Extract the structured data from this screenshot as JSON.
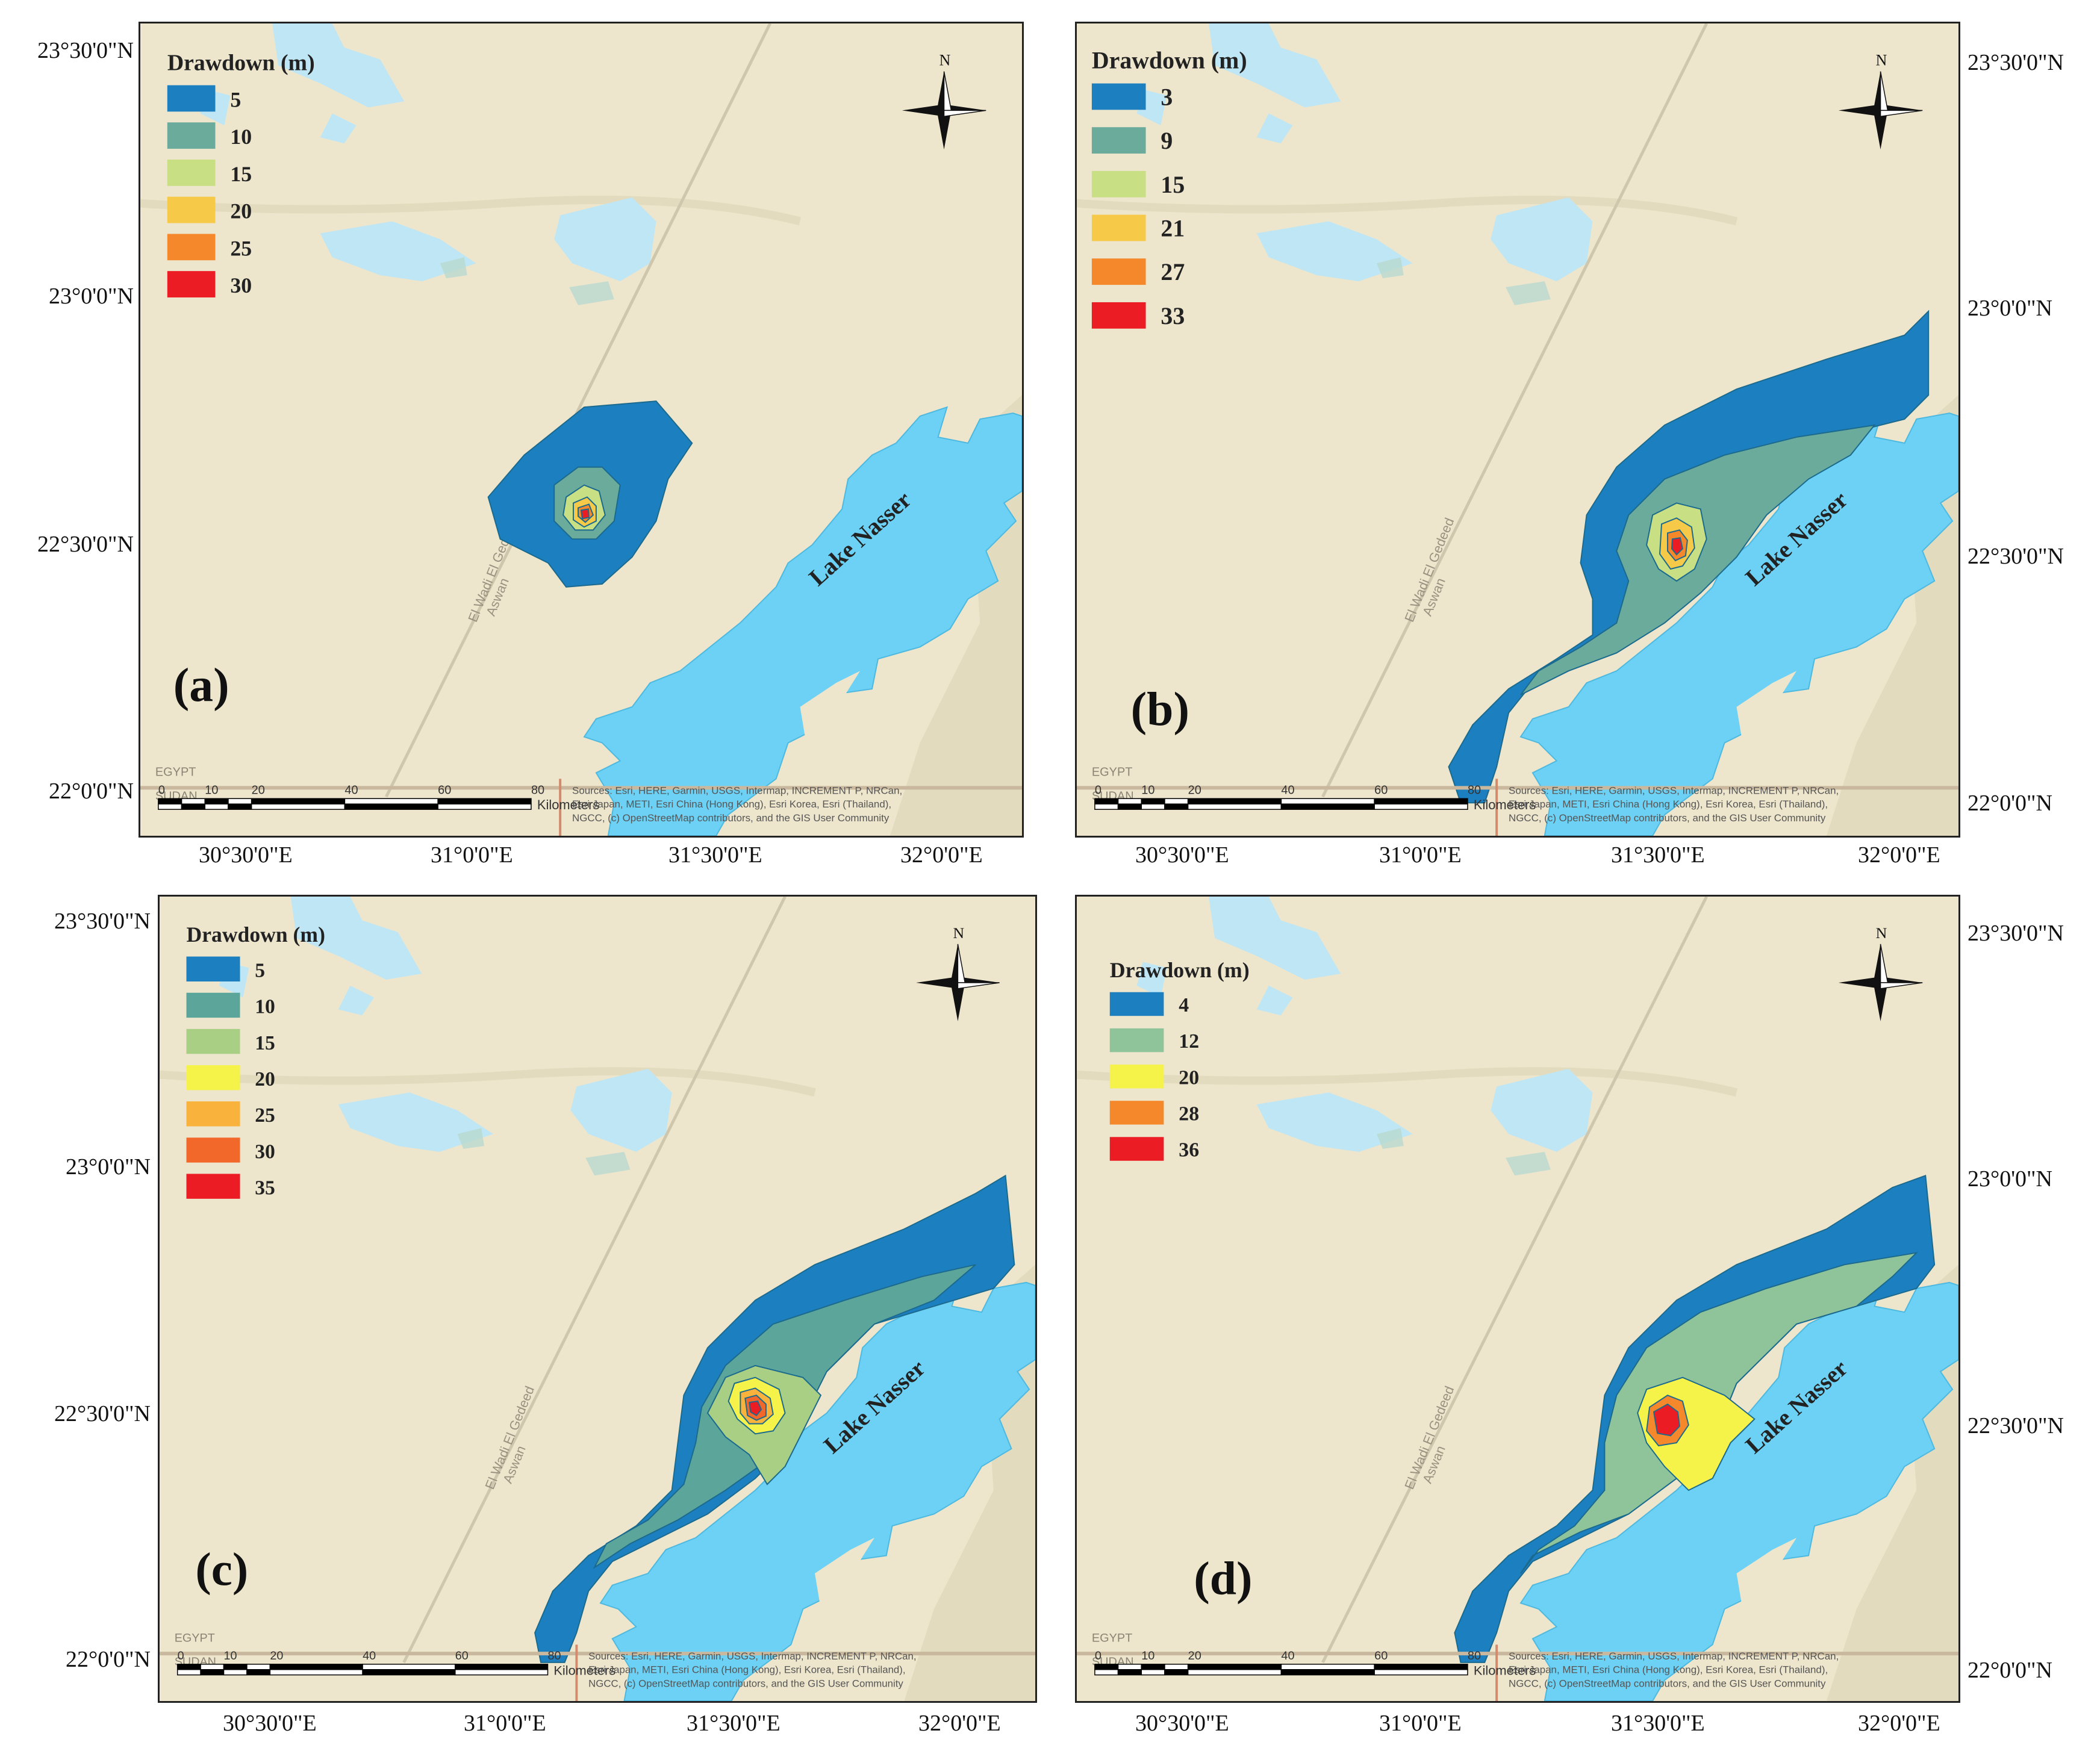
{
  "panels": [
    {
      "id": "a",
      "tag": "(a)",
      "legend_title": "Drawdown (m)",
      "legend": [
        {
          "label": "5",
          "color": "#1c7fc0"
        },
        {
          "label": "10",
          "color": "#6aab9c"
        },
        {
          "label": "15",
          "color": "#c9df84"
        },
        {
          "label": "20",
          "color": "#f7c948"
        },
        {
          "label": "25",
          "color": "#f5882a"
        },
        {
          "label": "30",
          "color": "#ec1c24"
        }
      ],
      "lat_left": [
        "23°30'0\"N",
        "23°0'0\"N",
        "22°30'0\"N",
        "22°0'0\"N"
      ],
      "lat_right": [],
      "lon_bottom": [
        "30°30'0\"E",
        "31°0'0\"E",
        "31°30'0\"E",
        "32°0'0\"E"
      ]
    },
    {
      "id": "b",
      "tag": "(b)",
      "legend_title": "Drawdown (m)",
      "legend": [
        {
          "label": "3",
          "color": "#1c7fc0"
        },
        {
          "label": "9",
          "color": "#6aab9c"
        },
        {
          "label": "15",
          "color": "#c9df84"
        },
        {
          "label": "21",
          "color": "#f7c948"
        },
        {
          "label": "27",
          "color": "#f5882a"
        },
        {
          "label": "33",
          "color": "#ec1c24"
        }
      ],
      "lat_left": [],
      "lat_right": [
        "23°30'0\"N",
        "23°0'0\"N",
        "22°30'0\"N",
        "22°0'0\"N"
      ],
      "lon_bottom": [
        "30°30'0\"E",
        "31°0'0\"E",
        "31°30'0\"E",
        "32°0'0\"E"
      ]
    },
    {
      "id": "c",
      "tag": "(c)",
      "legend_title": "Drawdown (m)",
      "legend": [
        {
          "label": "5",
          "color": "#1c7fc0"
        },
        {
          "label": "10",
          "color": "#5ba59b"
        },
        {
          "label": "15",
          "color": "#a9cf84"
        },
        {
          "label": "20",
          "color": "#f5f24a"
        },
        {
          "label": "25",
          "color": "#f9b23c"
        },
        {
          "label": "30",
          "color": "#f2672a"
        },
        {
          "label": "35",
          "color": "#ec1c24"
        }
      ],
      "lat_left": [
        "23°30'0\"N",
        "23°0'0\"N",
        "22°30'0\"N",
        "22°0'0\"N"
      ],
      "lat_right": [],
      "lon_bottom": [
        "30°30'0\"E",
        "31°0'0\"E",
        "31°30'0\"E",
        "32°0'0\"E"
      ]
    },
    {
      "id": "d",
      "tag": "(d)",
      "legend_title": "Drawdown (m)",
      "legend": [
        {
          "label": "4",
          "color": "#1c7fc0"
        },
        {
          "label": "12",
          "color": "#8fc49a"
        },
        {
          "label": "20",
          "color": "#f5f24a"
        },
        {
          "label": "28",
          "color": "#f5882a"
        },
        {
          "label": "36",
          "color": "#ec1c24"
        }
      ],
      "lat_left": [],
      "lat_right": [
        "23°30'0\"N",
        "23°0'0\"N",
        "22°30'0\"N",
        "22°0'0\"N"
      ],
      "lon_bottom": [
        "30°30'0\"E",
        "31°0'0\"E",
        "31°30'0\"E",
        "32°0'0\"E"
      ]
    }
  ],
  "map_labels": {
    "lake": "Lake Nasser",
    "road_1": "El Wadi El Gedeed",
    "road_2": "Aswan",
    "country_n": "EGYPT",
    "country_s": "SUDAN",
    "north": "N",
    "scale_ticks": [
      "0",
      "10",
      "20",
      "40",
      "60",
      "80"
    ],
    "scale_unit": "Kilometers",
    "attribution_1": "Sources: Esri, HERE, Garmin, USGS, Intermap, INCREMENT P, NRCan,",
    "attribution_2": "Esri Japan, METI, Esri China (Hong Kong), Esri Korea, Esri (Thailand),",
    "attribution_3": "NGCC, (c) OpenStreetMap contributors, and the GIS User Community"
  },
  "colors": {
    "land": "#ede6cc",
    "water": "#6cd1f4",
    "lake_light": "#bfe6f5"
  }
}
